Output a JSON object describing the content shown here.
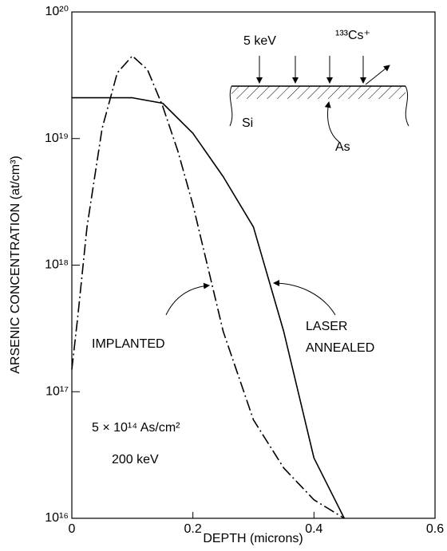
{
  "chart_data": {
    "type": "line",
    "xlabel": "DEPTH (microns)",
    "ylabel": "ARSENIC CONCENTRATION (at/cm³)",
    "xlim": [
      0,
      0.6
    ],
    "xticks": [
      0,
      0.2,
      0.4,
      0.6
    ],
    "ylim": [
      1e+16,
      1e+20
    ],
    "yticks": [
      {
        "value": 1e+16,
        "label": "10¹⁶"
      },
      {
        "value": 1e+17,
        "label": "10¹⁷"
      },
      {
        "value": 1e+18,
        "label": "10¹⁸"
      },
      {
        "value": 1e+19,
        "label": "10¹⁹"
      },
      {
        "value": 1e+20,
        "label": "10²⁰"
      }
    ],
    "log_y": true,
    "series": [
      {
        "name": "IMPLANTED",
        "color": "#000000",
        "dash": "dash-dot",
        "x": [
          0,
          0.01,
          0.025,
          0.05,
          0.075,
          0.1,
          0.125,
          0.15,
          0.175,
          0.2,
          0.25,
          0.3,
          0.35,
          0.4,
          0.45
        ],
        "values": [
          1.5e+17,
          4e+17,
          2e+18,
          1.2e+19,
          3.3e+19,
          4.5e+19,
          3.5e+19,
          1.8e+19,
          8e+18,
          3e+18,
          3e+17,
          6e+16,
          2.5e+16,
          1.4e+16,
          1e+16
        ]
      },
      {
        "name": "LASER ANNEALED",
        "color": "#000000",
        "dash": "solid",
        "x": [
          0,
          0.05,
          0.1,
          0.15,
          0.2,
          0.25,
          0.3,
          0.35,
          0.4,
          0.45
        ],
        "values": [
          2.1e+19,
          2.1e+19,
          2.1e+19,
          1.9e+19,
          1.1e+19,
          5e+18,
          2e+18,
          3e+17,
          3e+16,
          1e+16
        ]
      }
    ],
    "annotations": {
      "implanted": "IMPLANTED",
      "laser": "LASER",
      "annealed": "ANNEALED",
      "dose": "5 × 10¹⁴ As/cm²",
      "energy": "200 keV",
      "beam_energy": "5 keV",
      "ion": "¹³³Cs⁺",
      "substrate": "Si",
      "species": "As"
    }
  }
}
